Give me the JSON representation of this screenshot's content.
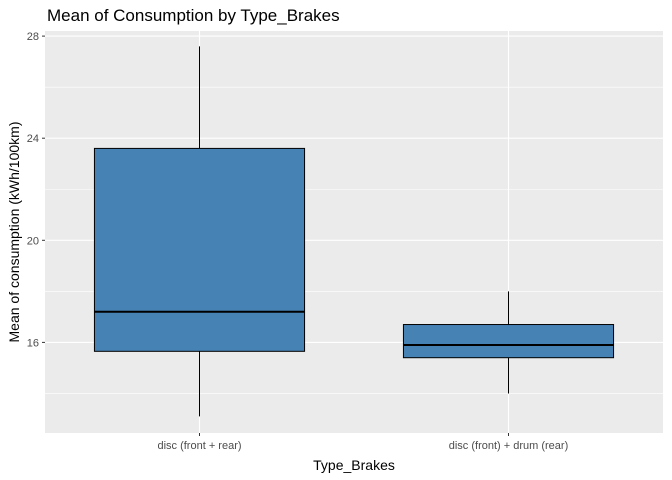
{
  "chart_data": {
    "type": "boxplot",
    "title": "Mean of Consumption by Type_Brakes",
    "xlabel": "Type_Brakes",
    "ylabel": "Mean of consumption (kWh/100km)",
    "categories": [
      "disc (front + rear)",
      "disc (front) + drum (rear)"
    ],
    "boxes": [
      {
        "category": "disc (front + rear)",
        "whisker_low": 13.1,
        "q1": 15.65,
        "median": 17.2,
        "q3": 23.6,
        "whisker_high": 27.6
      },
      {
        "category": "disc (front) + drum (rear)",
        "whisker_low": 14.0,
        "q1": 15.4,
        "median": 15.9,
        "q3": 16.7,
        "whisker_high": 18.0
      }
    ],
    "yticks": [
      16,
      20,
      24,
      28
    ],
    "ylim": [
      12.45,
      28.2
    ],
    "fill_color": "#4682B4",
    "panel_color": "#EBEBEB",
    "grid": true
  }
}
